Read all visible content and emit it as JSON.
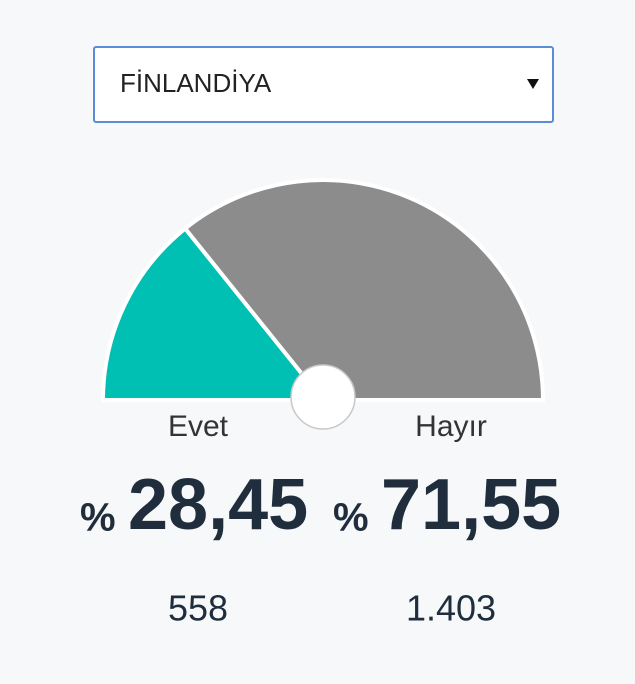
{
  "selector": "FİNLANDİYA",
  "chart_data": {
    "type": "gauge",
    "categories": [
      "Evet",
      "Hayır"
    ],
    "values": [
      28.45,
      71.55
    ],
    "value_labels": [
      "28,45",
      "71,55"
    ],
    "percent_sign": "%",
    "counts": [
      558,
      1403
    ],
    "count_labels": [
      "558",
      "1.403"
    ],
    "colors": [
      "#00bfb3",
      "#8c8c8c"
    ]
  }
}
